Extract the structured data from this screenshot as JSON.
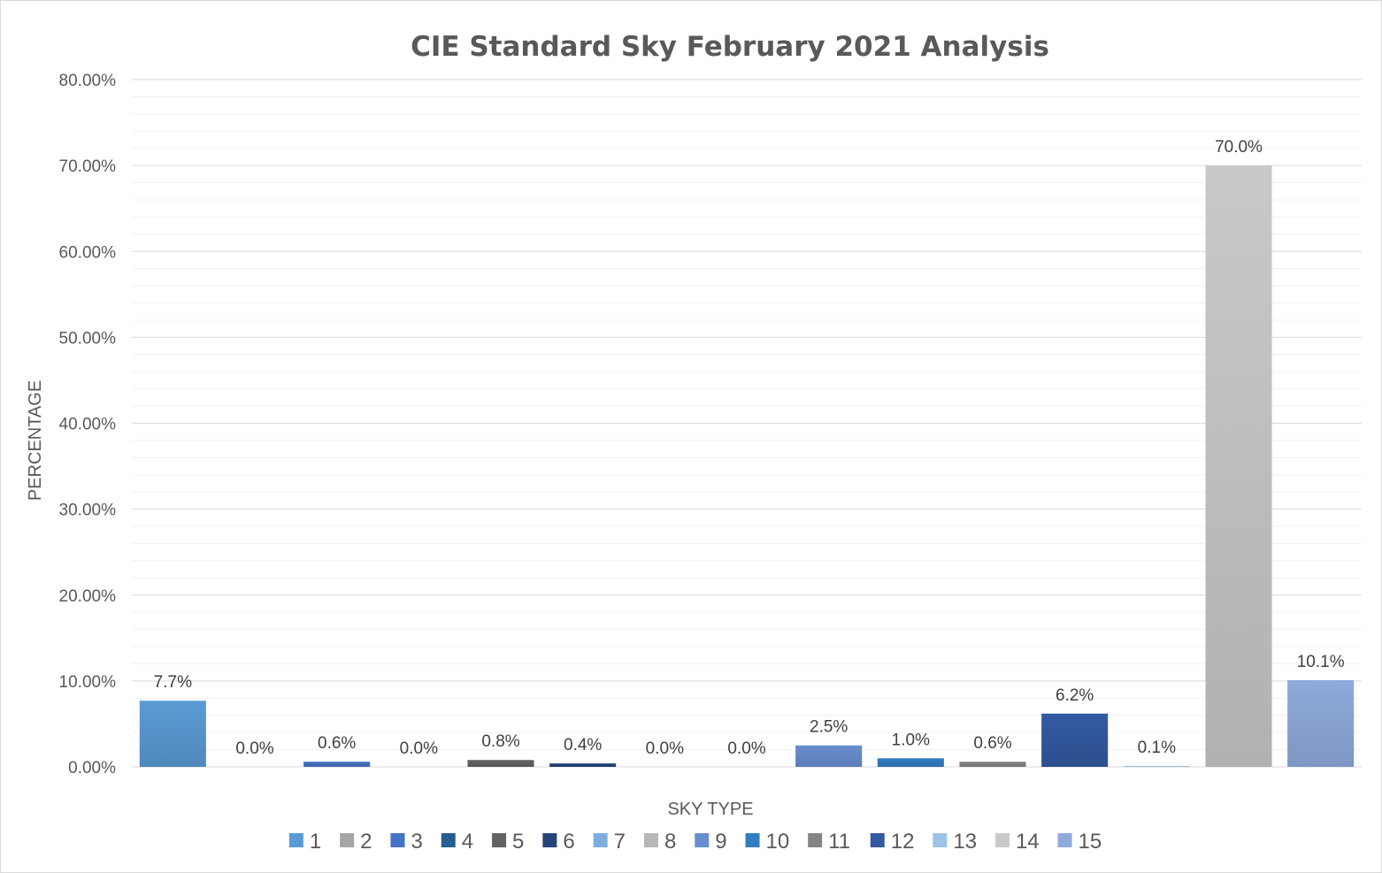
{
  "chart_data": {
    "type": "bar",
    "title": "CIE Standard Sky February 2021 Analysis",
    "xlabel": "SKY TYPE",
    "ylabel": "PERCENTAGE",
    "ylim": [
      0,
      80
    ],
    "ytick_step": 10,
    "ytick_labels": [
      "0.00%",
      "10.00%",
      "20.00%",
      "30.00%",
      "40.00%",
      "50.00%",
      "60.00%",
      "70.00%",
      "80.00%"
    ],
    "minor_grid_step": 2,
    "grid": true,
    "legend_position": "bottom",
    "categories": [
      "1",
      "2",
      "3",
      "4",
      "5",
      "6",
      "7",
      "8",
      "9",
      "10",
      "11",
      "12",
      "13",
      "14",
      "15"
    ],
    "values": [
      7.7,
      0.0,
      0.6,
      0.0,
      0.8,
      0.4,
      0.0,
      0.0,
      2.5,
      1.0,
      0.6,
      6.2,
      0.1,
      70.0,
      10.1
    ],
    "data_labels": [
      "7.7%",
      "0.0%",
      "0.6%",
      "0.0%",
      "0.8%",
      "0.4%",
      "0.0%",
      "0.0%",
      "2.5%",
      "1.0%",
      "0.6%",
      "6.2%",
      "0.1%",
      "70.0%",
      "10.1%"
    ],
    "colors": [
      "#5b9bd5",
      "#a5a5a5",
      "#4472c4",
      "#255e91",
      "#636363",
      "#264478",
      "#7cafdd",
      "#b7b7b7",
      "#698ed0",
      "#327dc2",
      "#848484",
      "#335aa1",
      "#9dc3e6",
      "#c9c9c9",
      "#8faadc"
    ]
  }
}
